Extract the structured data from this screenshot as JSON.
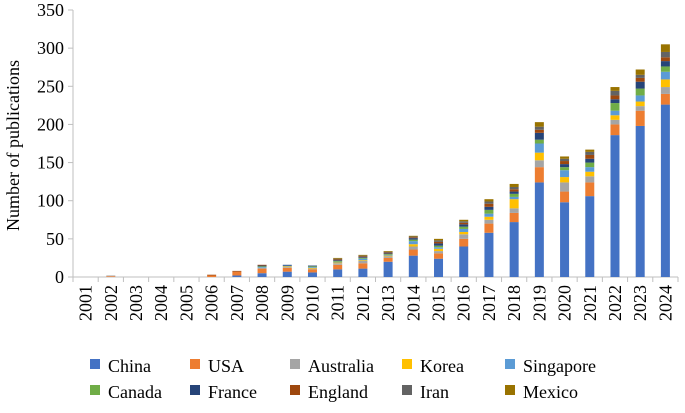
{
  "chart_data": {
    "type": "bar",
    "stacked": true,
    "title": "",
    "xlabel": "",
    "ylabel": "Number of publications",
    "ylim": [
      0,
      350
    ],
    "yticks": [
      0,
      50,
      100,
      150,
      200,
      250,
      300,
      350
    ],
    "grid": false,
    "legend_position": "bottom",
    "categories": [
      "2001",
      "2002",
      "2003",
      "2004",
      "2005",
      "2006",
      "2007",
      "2008",
      "2009",
      "2010",
      "2011",
      "2012",
      "2013",
      "2014",
      "2015",
      "2016",
      "2017",
      "2018",
      "2019",
      "2020",
      "2021",
      "2022",
      "2023",
      "2024"
    ],
    "series": [
      {
        "name": "China",
        "color": "#4472C4",
        "values": [
          0,
          0,
          0,
          0,
          0,
          0,
          2,
          5,
          7,
          6,
          10,
          11,
          20,
          28,
          24,
          40,
          58,
          72,
          124,
          98,
          106,
          186,
          198,
          226
        ]
      },
      {
        "name": "USA",
        "color": "#ED7D31",
        "values": [
          0,
          1,
          0,
          0,
          0,
          2,
          5,
          6,
          5,
          4,
          6,
          7,
          5,
          8,
          7,
          10,
          12,
          12,
          20,
          14,
          18,
          14,
          20,
          14
        ]
      },
      {
        "name": "Australia",
        "color": "#A5A5A5",
        "values": [
          0,
          1,
          0,
          0,
          0,
          0,
          0,
          1,
          1,
          1,
          2,
          3,
          2,
          4,
          3,
          6,
          5,
          6,
          9,
          12,
          8,
          6,
          6,
          9
        ]
      },
      {
        "name": "Korea",
        "color": "#FFC000",
        "values": [
          0,
          0,
          0,
          0,
          0,
          0,
          0,
          0,
          1,
          1,
          1,
          1,
          1,
          3,
          3,
          3,
          4,
          12,
          10,
          7,
          6,
          6,
          6,
          10
        ]
      },
      {
        "name": "Singapore",
        "color": "#5B9BD5",
        "values": [
          0,
          0,
          0,
          0,
          0,
          0,
          0,
          1,
          1,
          1,
          1,
          2,
          1,
          4,
          2,
          4,
          4,
          3,
          12,
          9,
          6,
          6,
          8,
          10
        ]
      },
      {
        "name": "Canada",
        "color": "#70AD47",
        "values": [
          0,
          0,
          0,
          0,
          0,
          0,
          0,
          1,
          0,
          1,
          1,
          1,
          1,
          2,
          2,
          3,
          5,
          4,
          5,
          4,
          6,
          10,
          9,
          7
        ]
      },
      {
        "name": "France",
        "color": "#264478",
        "values": [
          0,
          0,
          0,
          0,
          0,
          0,
          0,
          1,
          1,
          1,
          1,
          1,
          1,
          2,
          3,
          3,
          4,
          3,
          9,
          4,
          5,
          5,
          9,
          7
        ]
      },
      {
        "name": "England",
        "color": "#9E480E",
        "values": [
          0,
          0,
          0,
          0,
          0,
          1,
          1,
          1,
          0,
          0,
          1,
          1,
          1,
          1,
          2,
          2,
          4,
          3,
          4,
          4,
          5,
          5,
          5,
          5
        ]
      },
      {
        "name": "Iran",
        "color": "#636363",
        "values": [
          0,
          0,
          0,
          0,
          0,
          0,
          0,
          0,
          0,
          0,
          1,
          1,
          1,
          1,
          2,
          2,
          3,
          3,
          4,
          3,
          4,
          6,
          4,
          7
        ]
      },
      {
        "name": "Mexico",
        "color": "#997300",
        "values": [
          0,
          0,
          0,
          0,
          0,
          0,
          0,
          0,
          0,
          0,
          1,
          1,
          1,
          1,
          2,
          2,
          3,
          4,
          6,
          3,
          3,
          5,
          7,
          10
        ]
      }
    ]
  }
}
